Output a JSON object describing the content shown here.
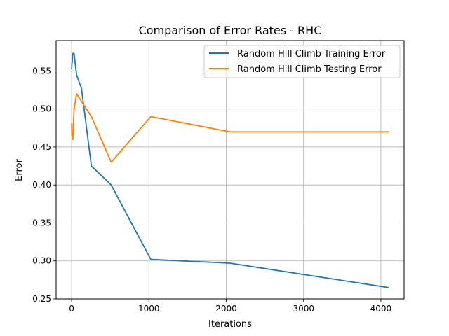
{
  "chart_data": {
    "type": "line",
    "title": "Comparison of Error Rates - RHC",
    "xlabel": "Iterations",
    "ylabel": "Error",
    "xlim": [
      -200,
      4300
    ],
    "ylim": [
      0.25,
      0.59
    ],
    "xticks": [
      0,
      1000,
      2000,
      3000,
      4000
    ],
    "yticks": [
      0.25,
      0.3,
      0.35,
      0.4,
      0.45,
      0.5,
      0.55
    ],
    "xtick_labels": [
      "0",
      "1000",
      "2000",
      "3000",
      "4000"
    ],
    "ytick_labels": [
      "0.25",
      "0.30",
      "0.35",
      "0.40",
      "0.45",
      "0.50",
      "0.55"
    ],
    "grid": true,
    "legend_position": "top-right",
    "series": [
      {
        "name": "Random Hill Climb Training Error",
        "color": "#1f77b4",
        "x": [
          1,
          2,
          4,
          8,
          16,
          32,
          64,
          128,
          256,
          512,
          1024,
          2048,
          4096
        ],
        "y": [
          0.553,
          0.555,
          0.56,
          0.562,
          0.573,
          0.573,
          0.545,
          0.527,
          0.425,
          0.4,
          0.302,
          0.297,
          0.265
        ]
      },
      {
        "name": "Random Hill Climb Testing Error",
        "color": "#ff7f0e",
        "x": [
          1,
          2,
          4,
          8,
          16,
          32,
          64,
          128,
          256,
          512,
          1024,
          2048,
          4096
        ],
        "y": [
          0.48,
          0.47,
          0.465,
          0.462,
          0.46,
          0.5,
          0.52,
          0.51,
          0.49,
          0.43,
          0.49,
          0.47,
          0.47
        ]
      }
    ]
  }
}
